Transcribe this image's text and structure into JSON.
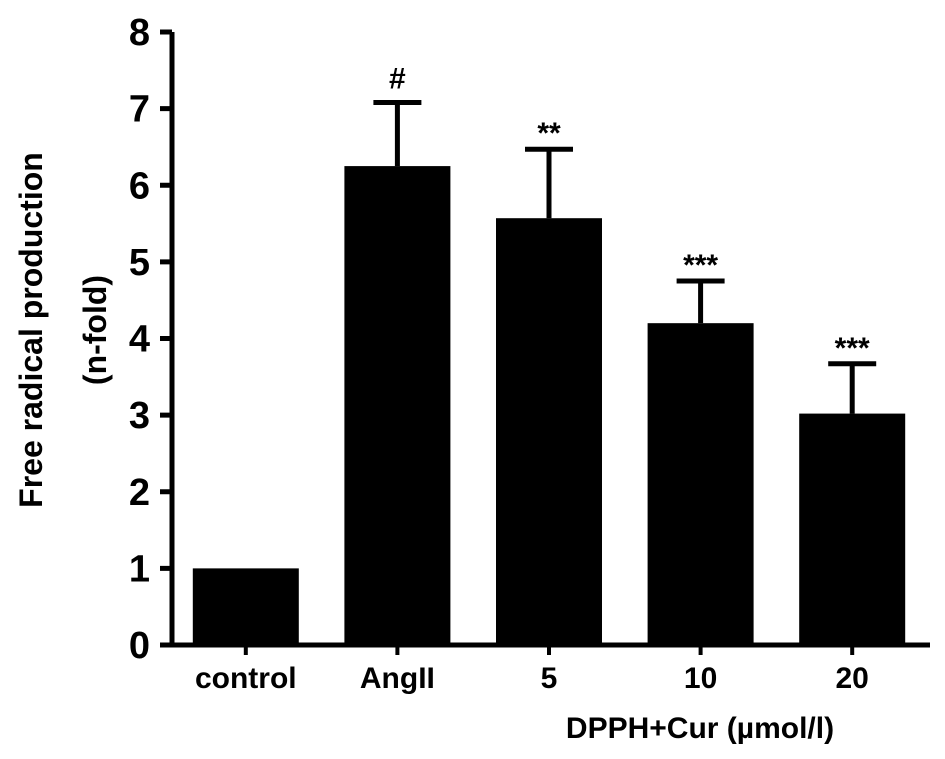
{
  "chart_data": {
    "type": "bar",
    "title": "",
    "ylabel_lines": [
      "Free radical production",
      "(n-fold)"
    ],
    "xlabel": "DPPH+Cur (µmol/l)",
    "categories": [
      "control",
      "AngII",
      "5",
      "10",
      "20"
    ],
    "values": [
      1.0,
      6.25,
      5.57,
      4.2,
      3.02
    ],
    "errors": [
      0.0,
      0.83,
      0.9,
      0.55,
      0.65
    ],
    "annotations": [
      "",
      "#",
      "**",
      "***",
      "***"
    ],
    "ylim": [
      0,
      8
    ],
    "yticks": [
      0,
      1,
      2,
      3,
      4,
      5,
      6,
      7,
      8
    ],
    "grid": false,
    "legend": "none",
    "bar_color": "#000000"
  }
}
